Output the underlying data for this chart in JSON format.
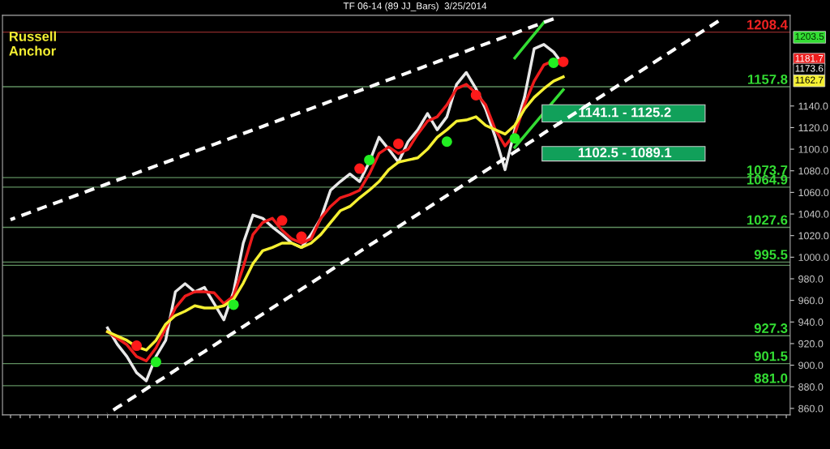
{
  "chart_data": {
    "type": "line",
    "title": "TF 06-14 (89 JJ_Bars)  3/25/2014",
    "categories": [
      null,
      null,
      null,
      null,
      null,
      null,
      null,
      null,
      null,
      null,
      null,
      null,
      null,
      null,
      null,
      null,
      null,
      null,
      null,
      null,
      null,
      null,
      null,
      null,
      null,
      null,
      null,
      null,
      null,
      null,
      null,
      null,
      null,
      null,
      null,
      null,
      null,
      null,
      null,
      null,
      null,
      null,
      null,
      null,
      null,
      null,
      null,
      null,
      null,
      null,
      null,
      null,
      null,
      null,
      null,
      null,
      null,
      null,
      null,
      null,
      null,
      null,
      null,
      null,
      null,
      null,
      null,
      null,
      null,
      null,
      null,
      null,
      null,
      null,
      null,
      null,
      null,
      null,
      null,
      null,
      null
    ],
    "series": [
      {
        "color": "#e8e8e8",
        "values": [
          null,
          null,
          null,
          null,
          null,
          null,
          null,
          null,
          null,
          null,
          934.5,
          919.5,
          908,
          893,
          885.5,
          908,
          923,
          968,
          975.5,
          968,
          972,
          957,
          942,
          968,
          1013,
          1039,
          1036,
          1028,
          1021,
          1013,
          1009,
          1021,
          1036,
          1062,
          1070,
          1077,
          1070,
          1088,
          1111,
          1100,
          1088,
          1107,
          1118,
          1133,
          1118,
          1130,
          1160,
          1171,
          1156,
          1137,
          1111,
          1081,
          1118,
          1148,
          1193,
          1197,
          1190,
          1178,
          null,
          null,
          null,
          null,
          null,
          null,
          null,
          null,
          null,
          null,
          null,
          null,
          null,
          null,
          null,
          null,
          null,
          null,
          null,
          null,
          null,
          null,
          null
        ]
      },
      {
        "color": "#ee1c1c",
        "values": [
          null,
          null,
          null,
          null,
          null,
          null,
          null,
          null,
          null,
          null,
          931,
          925,
          919,
          908,
          904,
          916,
          934,
          953,
          964,
          968,
          968,
          967,
          957,
          964,
          991,
          1021,
          1032,
          1036,
          1025,
          1017,
          1013,
          1017,
          1036,
          1047,
          1055,
          1058,
          1062,
          1077,
          1096,
          1102,
          1096,
          1100,
          1114,
          1126,
          1130,
          1141,
          1156,
          1160,
          1152,
          1141,
          1118,
          1103,
          1114,
          1141,
          1163,
          1178,
          1182,
          1182,
          null,
          null,
          null,
          null,
          null,
          null,
          null,
          null,
          null,
          null,
          null,
          null,
          null,
          null,
          null,
          null,
          null,
          null,
          null,
          null,
          null,
          null,
          null
        ]
      },
      {
        "color": "#f5f032",
        "values": [
          null,
          null,
          null,
          null,
          null,
          null,
          null,
          null,
          null,
          null,
          931,
          927,
          923,
          917,
          914,
          923,
          938,
          946,
          950,
          955,
          953,
          953,
          955,
          961,
          976,
          994,
          1006,
          1009,
          1013,
          1013,
          1009,
          1013,
          1021,
          1032,
          1043,
          1047,
          1055,
          1062,
          1070,
          1081,
          1088,
          1090,
          1092,
          1100,
          1111,
          1118,
          1126,
          1127,
          1130,
          1122,
          1118,
          1114,
          1122,
          1137,
          1148,
          1156,
          1163,
          1167,
          null,
          null,
          null,
          null,
          null,
          null,
          null,
          null,
          null,
          null,
          null,
          null,
          null,
          null,
          null,
          null,
          null,
          null,
          null,
          null,
          null,
          null,
          null
        ]
      },
      {
        "line_style": "dashed",
        "color": "#ffffff",
        "values": [
          1034.8,
          1038.1,
          1041.4,
          1044.8,
          1048.1,
          1051.4,
          1054.7,
          1058.0,
          1061.4,
          1064.7,
          1068.0,
          1071.3,
          1074.6,
          1078.0,
          1081.3,
          1084.6,
          1087.9,
          1091.2,
          1094.6,
          1097.9,
          1101.2,
          1104.5,
          1107.8,
          1111.2,
          1114.5,
          1117.8,
          1121.1,
          1124.4,
          1127.8,
          1131.1,
          1134.4,
          1137.7,
          1141.0,
          1144.4,
          1147.7,
          1151.0,
          1154.3,
          1157.6,
          1161.0,
          1164.3,
          1167.6,
          1170.9,
          1174.2,
          1177.6,
          1180.9,
          1184.2,
          1187.5,
          1190.8,
          1194.2,
          1197.5,
          1200.8,
          1204.1,
          1207.4,
          1210.8,
          1214.1,
          1217.4,
          1220.7,
          null,
          null,
          null,
          null,
          null,
          null,
          null,
          null,
          null,
          null,
          null,
          null,
          null,
          null,
          null,
          null,
          null,
          null,
          null,
          null,
          null,
          null,
          null,
          null
        ]
      },
      {
        "line_style": "dashed",
        "color": "#ffffff",
        "values": [
          null,
          null,
          null,
          null,
          null,
          null,
          null,
          null,
          null,
          null,
          855.0,
          860.8,
          866.5,
          872.3,
          878.1,
          883.9,
          889.6,
          895.4,
          901.2,
          907.0,
          912.7,
          918.5,
          924.3,
          930.0,
          935.8,
          941.6,
          947.4,
          953.1,
          958.9,
          964.7,
          970.5,
          976.2,
          982.0,
          987.8,
          993.6,
          999.3,
          1005.1,
          1010.9,
          1016.6,
          1022.4,
          1028.2,
          1034.0,
          1039.7,
          1045.5,
          1051.3,
          1057.1,
          1062.8,
          1068.6,
          1074.4,
          1080.2,
          1085.9,
          1091.7,
          1097.5,
          1103.2,
          1109.0,
          1114.8,
          1120.6,
          1126.3,
          1132.1,
          1137.9,
          1143.7,
          1149.4,
          1155.2,
          1161.0,
          1166.8,
          1172.5,
          1178.3,
          1184.1,
          1189.8,
          1195.6,
          1201.4,
          1207.2,
          1212.9,
          1218.7,
          null,
          null,
          null,
          null,
          null,
          null,
          null
        ]
      },
      {
        "color": "#33dd33",
        "values": [
          null,
          null,
          null,
          null,
          null,
          null,
          null,
          null,
          null,
          null,
          null,
          null,
          null,
          null,
          null,
          null,
          null,
          null,
          null,
          null,
          null,
          null,
          null,
          null,
          null,
          null,
          null,
          null,
          null,
          null,
          null,
          null,
          null,
          null,
          null,
          null,
          null,
          null,
          null,
          null,
          null,
          null,
          null,
          null,
          null,
          null,
          null,
          null,
          null,
          null,
          null,
          null,
          1184.5,
          1195.5,
          1206.4,
          1217.4,
          null,
          null,
          null,
          null,
          null,
          null,
          null,
          null,
          null,
          null,
          null,
          null,
          null,
          null,
          null,
          null,
          null,
          null,
          null,
          null,
          null,
          null,
          null,
          null,
          null
        ]
      },
      {
        "color": "#33dd33",
        "values": [
          null,
          null,
          null,
          null,
          null,
          null,
          null,
          null,
          null,
          null,
          null,
          null,
          null,
          null,
          null,
          null,
          null,
          null,
          null,
          null,
          null,
          null,
          null,
          null,
          null,
          null,
          null,
          null,
          null,
          null,
          null,
          null,
          null,
          null,
          null,
          null,
          null,
          null,
          null,
          null,
          null,
          null,
          null,
          null,
          null,
          null,
          null,
          null,
          null,
          null,
          null,
          null,
          1101.8,
          1112.4,
          1123.1,
          1133.7,
          1144.4,
          1155.0,
          null,
          null,
          null,
          null,
          null,
          null,
          null,
          null,
          null,
          null,
          null,
          null,
          null,
          null,
          null,
          null,
          null,
          null,
          null,
          null,
          null,
          null,
          null
        ]
      },
      {
        "type": "scatter",
        "color": "#22ee22",
        "values": [
          null,
          null,
          null,
          null,
          null,
          null,
          null,
          null,
          null,
          null,
          null,
          null,
          null,
          null,
          null,
          903,
          null,
          null,
          null,
          null,
          null,
          null,
          null,
          956,
          null,
          null,
          null,
          null,
          null,
          null,
          null,
          null,
          null,
          null,
          null,
          null,
          null,
          1090,
          null,
          null,
          null,
          null,
          null,
          null,
          null,
          1107,
          null,
          null,
          null,
          null,
          null,
          null,
          1110,
          null,
          null,
          null,
          1180,
          null,
          null,
          null,
          null,
          null,
          null,
          null,
          null,
          null,
          null,
          null,
          null,
          null,
          null,
          null,
          null,
          null,
          null,
          null,
          null,
          null,
          null,
          null,
          null
        ]
      },
      {
        "type": "scatter",
        "color": "#ff1a1a",
        "values": [
          null,
          null,
          null,
          null,
          null,
          null,
          null,
          null,
          null,
          null,
          null,
          null,
          null,
          918,
          null,
          null,
          null,
          null,
          null,
          null,
          null,
          null,
          null,
          null,
          null,
          null,
          null,
          null,
          1034,
          null,
          1019,
          null,
          null,
          null,
          null,
          null,
          1082,
          null,
          null,
          null,
          1105,
          null,
          null,
          null,
          null,
          null,
          null,
          null,
          1150,
          null,
          null,
          null,
          null,
          null,
          null,
          null,
          null,
          1181,
          null,
          null,
          null,
          null,
          null,
          null,
          null,
          null,
          null,
          null,
          null,
          null,
          null,
          null,
          null,
          null,
          null,
          null,
          null,
          null,
          null,
          null,
          null
        ]
      }
    ],
    "ylim": [
      854,
      1224
    ],
    "yticks": [
      {
        "value": 860,
        "label": "860.0"
      },
      {
        "value": 880,
        "label": "880.0"
      },
      {
        "value": 900,
        "label": "900.0"
      },
      {
        "value": 920,
        "label": "920.0"
      },
      {
        "value": 940,
        "label": "940.0"
      },
      {
        "value": 960,
        "label": "960.0"
      },
      {
        "value": 980,
        "label": "980.0"
      },
      {
        "value": 1000,
        "label": "1000.0"
      },
      {
        "value": 1020,
        "label": "1020.0"
      },
      {
        "value": 1040,
        "label": "1040.0"
      },
      {
        "value": 1060,
        "label": "1060.0"
      },
      {
        "value": 1080,
        "label": "1080.0"
      },
      {
        "value": 1100,
        "label": "1100.0"
      },
      {
        "value": 1120,
        "label": "1120.0"
      },
      {
        "value": 1140,
        "label": "1140.0"
      }
    ],
    "tick_labels": "y",
    "ref_lines": [
      {
        "axis": "y",
        "value": 1208.4,
        "label": "1208.4",
        "color": "#8b2a2a"
      },
      {
        "axis": "y",
        "value": 1157.8,
        "label": "1157.8",
        "color": "#5f8f5f"
      },
      {
        "axis": "y",
        "value": 1073.7,
        "label": "1073.7",
        "color": "#5f8f5f"
      },
      {
        "axis": "y",
        "value": 1064.9,
        "label": "1064.9",
        "color": "#5f8f5f"
      },
      {
        "axis": "y",
        "value": 1027.6,
        "label": "1027.6",
        "color": "#5f8f5f"
      },
      {
        "axis": "y",
        "value": 995.5,
        "label": "995.5",
        "color": "#5f8f5f"
      },
      {
        "axis": "y",
        "value": 992.5,
        "label": null,
        "color": "#5f8f5f"
      },
      {
        "axis": "y",
        "value": 927.3,
        "label": "927.3",
        "color": "#5f8f5f"
      },
      {
        "axis": "y",
        "value": 901.5,
        "label": "901.5",
        "color": "#5f8f5f"
      },
      {
        "axis": "y",
        "value": 881.0,
        "label": "881.0",
        "color": "#5f8f5f"
      }
    ],
    "bands": [
      {
        "axis": "y",
        "from": 1125.2,
        "to": 1141.1,
        "label": "1141.1 - 1125.2",
        "color": "#11a05a"
      },
      {
        "axis": "y",
        "from": 1089.1,
        "to": 1102.5,
        "label": "1102.5 - 1089.1",
        "color": "#11a05a"
      }
    ],
    "annotations": [
      "Russell\nAnchor",
      "1203.5",
      "1181.7",
      "1173.6",
      "1162.7"
    ],
    "legend": false,
    "grid": false
  }
}
